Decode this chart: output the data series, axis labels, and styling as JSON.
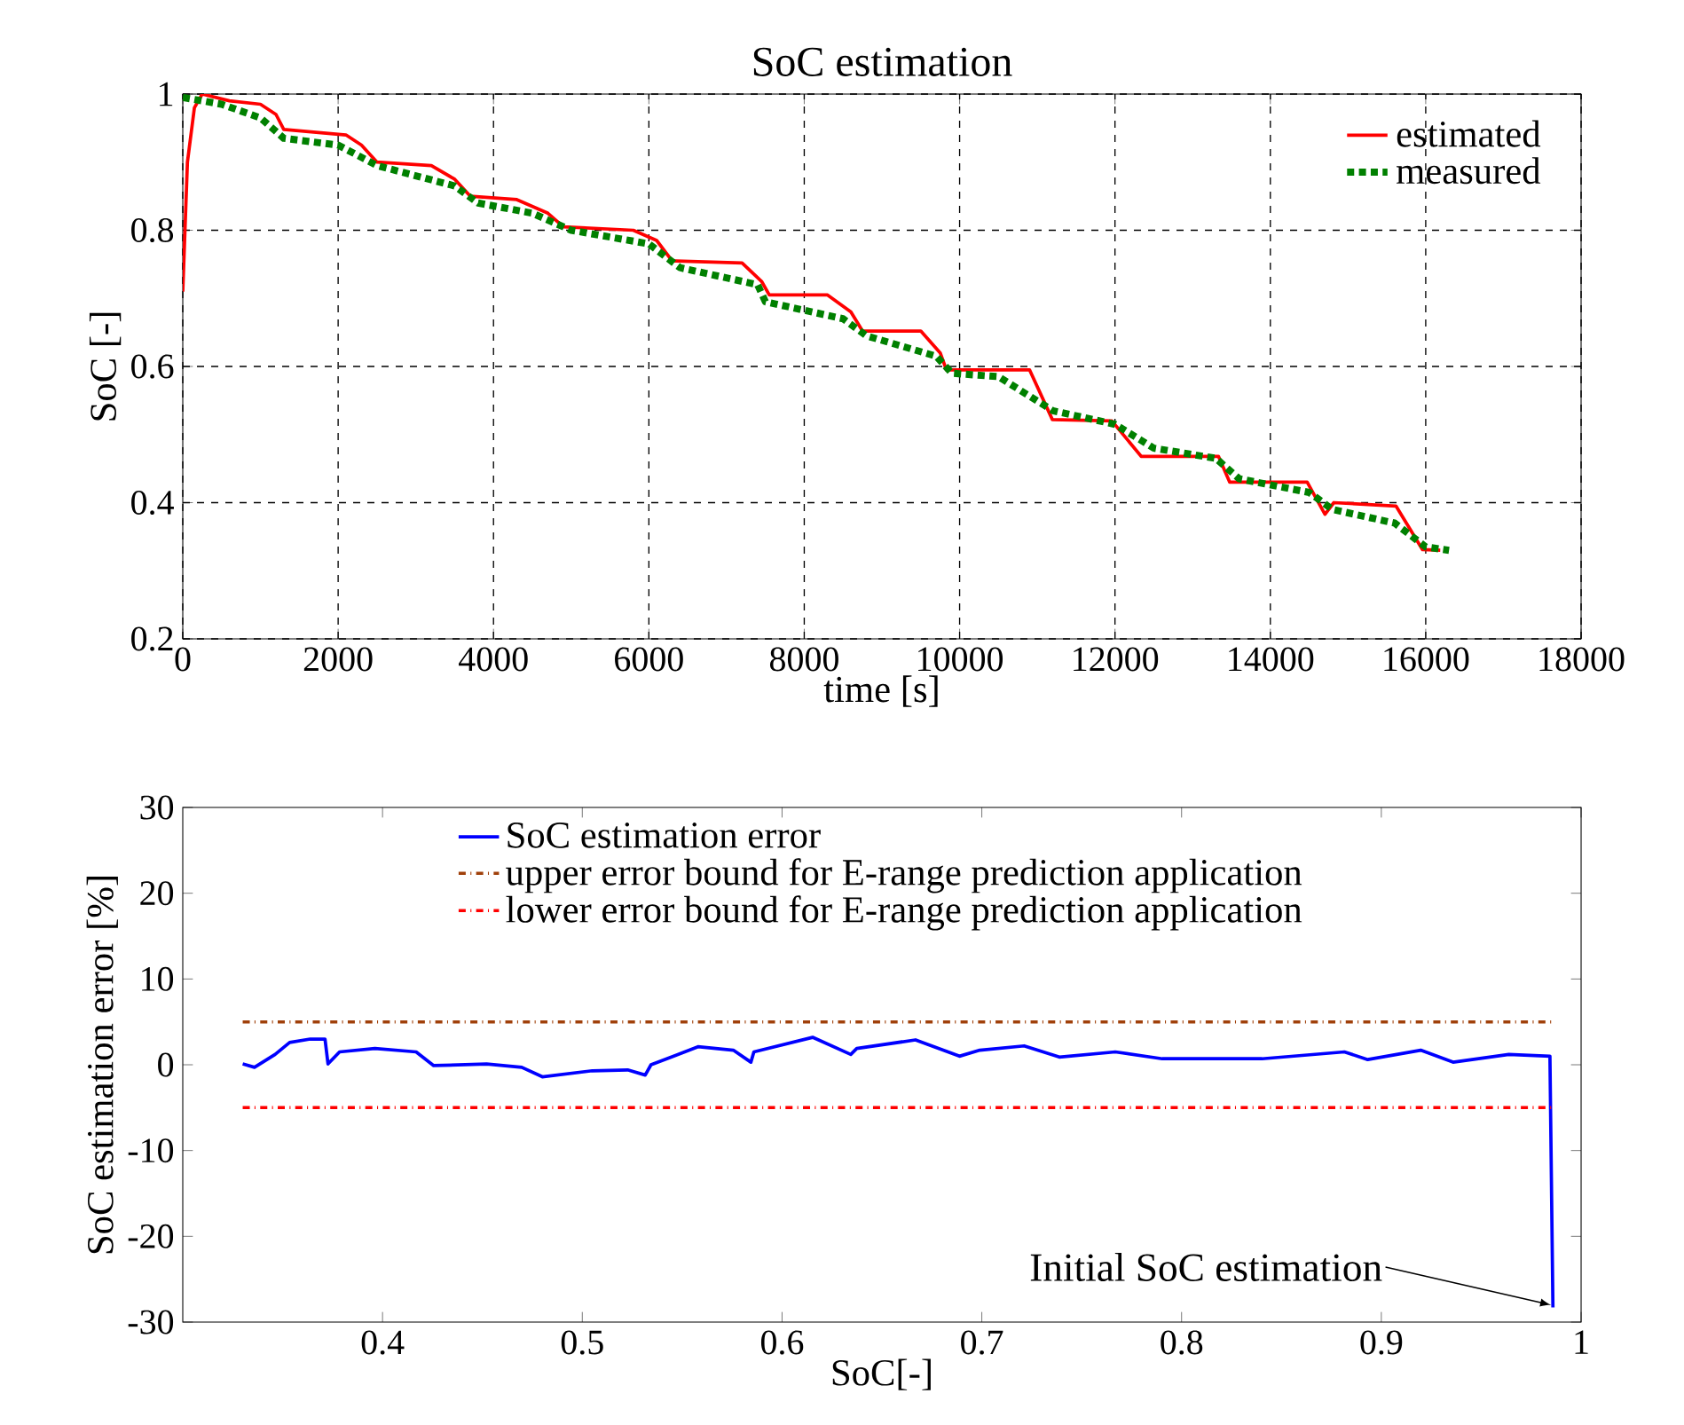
{
  "chart_data": [
    {
      "type": "line",
      "title": "SoC estimation",
      "xlabel": "time [s]",
      "ylabel": "SoC [-]",
      "xlim": [
        0,
        18000
      ],
      "ylim": [
        0.2,
        1
      ],
      "xticks": [
        0,
        2000,
        4000,
        6000,
        8000,
        10000,
        12000,
        14000,
        16000,
        18000
      ],
      "yticks": [
        0.2,
        0.4,
        0.6,
        0.8,
        1
      ],
      "grid": true,
      "legend": "top right",
      "series": [
        {
          "name": "estimated",
          "color": "#ff0000",
          "line_style": "solid",
          "x": [
            0,
            60,
            150,
            250,
            600,
            1000,
            1200,
            1300,
            2100,
            2300,
            2500,
            3200,
            3500,
            3700,
            4300,
            4700,
            4900,
            5800,
            6100,
            6300,
            7200,
            7450,
            7550,
            8300,
            8600,
            8750,
            9500,
            9750,
            9830,
            10900,
            11194,
            11960,
            12337,
            13332,
            13477,
            14474,
            14703,
            14817,
            15617,
            15959,
            16187
          ],
          "values": [
            0.71,
            0.9,
            0.98,
            1.0,
            0.99,
            0.985,
            0.97,
            0.948,
            0.94,
            0.925,
            0.9,
            0.895,
            0.875,
            0.85,
            0.845,
            0.825,
            0.805,
            0.8,
            0.785,
            0.755,
            0.752,
            0.725,
            0.705,
            0.705,
            0.68,
            0.652,
            0.652,
            0.62,
            0.595,
            0.595,
            0.522,
            0.52,
            0.468,
            0.468,
            0.43,
            0.43,
            0.383,
            0.4,
            0.395,
            0.331,
            0.33
          ]
        },
        {
          "name": "measured",
          "color": "#008000",
          "line_style": "dotted",
          "x": [
            0,
            500,
            1000,
            1300,
            2000,
            2500,
            3500,
            3800,
            4500,
            5000,
            6000,
            6400,
            7400,
            7500,
            8500,
            8800,
            9700,
            9900,
            10500,
            11200,
            12000,
            12500,
            13300,
            13600,
            14500,
            14800,
            15600,
            16000,
            16300
          ],
          "values": [
            0.995,
            0.985,
            0.965,
            0.935,
            0.925,
            0.895,
            0.865,
            0.84,
            0.825,
            0.8,
            0.78,
            0.745,
            0.72,
            0.695,
            0.67,
            0.645,
            0.615,
            0.59,
            0.585,
            0.535,
            0.515,
            0.48,
            0.465,
            0.435,
            0.415,
            0.39,
            0.37,
            0.335,
            0.33
          ]
        }
      ]
    },
    {
      "type": "line",
      "xlabel": "SoC[-]",
      "ylabel": "SoC estimation error [%]",
      "xlim": [
        0.3,
        1
      ],
      "ylim": [
        -30,
        30
      ],
      "xticks": [
        0.4,
        0.5,
        0.6,
        0.7,
        0.8,
        0.9,
        1
      ],
      "yticks": [
        -30,
        -20,
        -10,
        0,
        10,
        20,
        30
      ],
      "grid": false,
      "legend": "top",
      "annotations": [
        {
          "text": "Initial SoC estimation",
          "x": 0.985,
          "y": -28
        }
      ],
      "series": [
        {
          "name": "SoC estimation error",
          "color": "#0000ff",
          "line_style": "solid",
          "x": [
            0.33,
            0.3359,
            0.3462,
            0.3535,
            0.3638,
            0.3712,
            0.3727,
            0.3785,
            0.3962,
            0.4168,
            0.4256,
            0.4521,
            0.4697,
            0.48,
            0.505,
            0.5227,
            0.5315,
            0.5344,
            0.5579,
            0.5756,
            0.5844,
            0.5859,
            0.6153,
            0.6344,
            0.6374,
            0.6668,
            0.6888,
            0.699,
            0.7212,
            0.7388,
            0.7668,
            0.7903,
            0.8403,
            0.8815,
            0.8932,
            0.9197,
            0.9359,
            0.9638,
            0.9844,
            0.9859
          ],
          "values": [
            0.1,
            -0.3,
            1.2,
            2.6,
            3.0,
            3.0,
            0.1,
            1.5,
            1.9,
            1.5,
            -0.1,
            0.1,
            -0.3,
            -1.4,
            -0.7,
            -0.6,
            -1.2,
            0,
            2.1,
            1.7,
            0.3,
            1.5,
            3.2,
            1.2,
            1.9,
            2.9,
            1.0,
            1.7,
            2.2,
            0.9,
            1.5,
            0.7,
            0.7,
            1.5,
            0.6,
            1.7,
            0.3,
            1.2,
            1.0,
            -28.3
          ]
        },
        {
          "name": "upper error bound for E-range prediction application",
          "color": "#a0400a",
          "line_style": "dashdot",
          "x": [
            0.33,
            0.985
          ],
          "values": [
            5,
            5
          ]
        },
        {
          "name": "lower error bound for E-range prediction application",
          "color": "#ff0000",
          "line_style": "dashdot",
          "x": [
            0.33,
            0.985
          ],
          "values": [
            -5,
            -5
          ]
        }
      ]
    }
  ]
}
